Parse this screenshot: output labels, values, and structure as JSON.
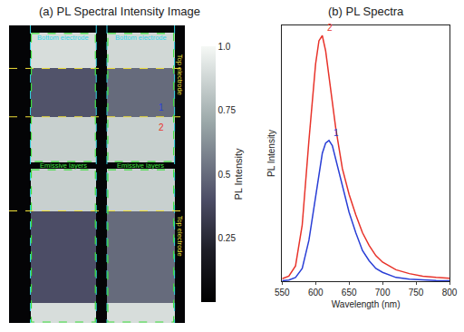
{
  "chart_data": [
    {
      "type": "heatmap",
      "title": "(a) PL Spectral Intensity Image",
      "x": [
        0,
        24,
        98,
        110,
        186,
        198
      ],
      "y": [
        0,
        8,
        48,
        102,
        153,
        160,
        207,
        310,
        332
      ],
      "z": [
        [
          0.03,
          0.03,
          0.03,
          0.03,
          0.03
        ],
        [
          0.03,
          0.9,
          0.03,
          0.88,
          0.03
        ],
        [
          0.03,
          0.42,
          0.03,
          0.5,
          0.03
        ],
        [
          0.03,
          0.85,
          0.03,
          0.85,
          0.03
        ],
        [
          0.03,
          0.03,
          0.03,
          0.03,
          0.03
        ],
        [
          0.03,
          0.85,
          0.03,
          0.85,
          0.03
        ],
        [
          0.03,
          0.4,
          0.03,
          0.5,
          0.03
        ],
        [
          0.03,
          0.9,
          0.03,
          0.9,
          0.03
        ]
      ],
      "xlim": [
        0,
        198
      ],
      "ylim": [
        0,
        332
      ],
      "tick_labels": false,
      "colorbar_title": "PL Intensity",
      "colorbar_range": [
        0,
        1
      ],
      "colorbar_ticks": [
        0.25,
        0.5,
        0.75,
        {
          "value": 1,
          "label": "1.0"
        }
      ],
      "annotations": [
        {
          "text": "Bottom electrode",
          "color": "#33d6e6"
        },
        {
          "text": "Bottom electrode",
          "color": "#33d6e6"
        },
        {
          "text": "Top electrode",
          "color": "#f2e23a"
        },
        {
          "text": "Top electrode",
          "color": "#f2e23a"
        },
        {
          "text": "Emissive layers",
          "color": "#3ee03e"
        },
        {
          "text": "Emissive layers",
          "color": "#3ee03e"
        },
        {
          "text": "1",
          "color": "#2a3fd6"
        },
        {
          "text": "2",
          "color": "#e8332a"
        }
      ]
    },
    {
      "type": "line",
      "title": "(b) PL Spectra",
      "x_label": "Wavelength (nm)",
      "y_label": "PL Intensity",
      "x": [
        550,
        560,
        570,
        580,
        590,
        600,
        605,
        610,
        615,
        620,
        625,
        630,
        640,
        650,
        660,
        670,
        680,
        690,
        700,
        720,
        740,
        760,
        780,
        800
      ],
      "series": [
        {
          "name": "2",
          "color": "#e8332a",
          "values": [
            0.01,
            0.02,
            0.06,
            0.22,
            0.55,
            0.85,
            0.94,
            0.96,
            0.9,
            0.8,
            0.7,
            0.6,
            0.44,
            0.34,
            0.26,
            0.19,
            0.14,
            0.1,
            0.075,
            0.045,
            0.03,
            0.02,
            0.015,
            0.012
          ]
        },
        {
          "name": "1",
          "color": "#2a3fd6",
          "values": [
            0.002,
            0.005,
            0.015,
            0.05,
            0.16,
            0.33,
            0.42,
            0.5,
            0.54,
            0.55,
            0.53,
            0.48,
            0.37,
            0.27,
            0.19,
            0.12,
            0.08,
            0.05,
            0.035,
            0.015,
            0.008,
            0.005,
            0.003,
            0.002
          ]
        }
      ],
      "xlim": [
        550,
        800
      ],
      "xticks": [
        550,
        600,
        650,
        700,
        750,
        800
      ],
      "ylim": [
        0,
        1
      ],
      "tick_labels": "x"
    }
  ]
}
